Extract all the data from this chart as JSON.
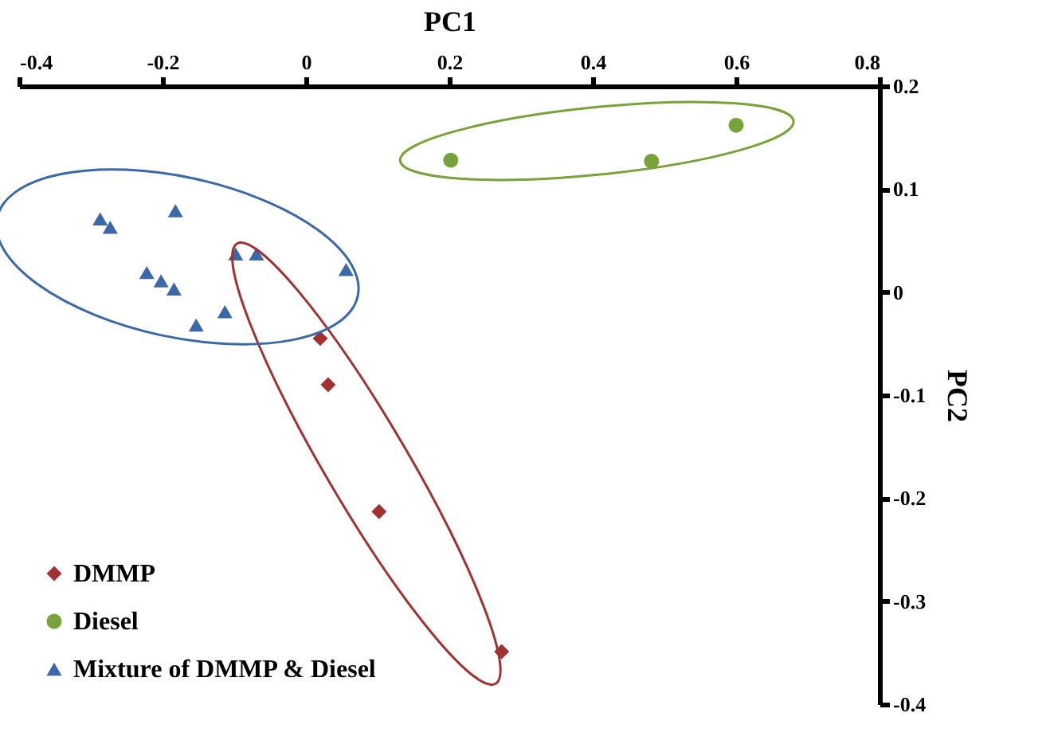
{
  "chart_data": {
    "type": "scatter",
    "xlabel": "PC1",
    "ylabel": "PC2",
    "xlim": [
      -0.4,
      0.8
    ],
    "xticks": [
      -0.4,
      -0.2,
      0,
      0.2,
      0.4,
      0.6,
      0.8
    ],
    "ylim": [
      -0.4,
      0.2
    ],
    "yticks": [
      -0.4,
      -0.3,
      -0.2,
      -0.1,
      0,
      0.1,
      0.2
    ],
    "grid": false,
    "legend": "bottom left",
    "series": [
      {
        "name": "DMMP",
        "color": "#a03232",
        "marker": "diamond",
        "x": [
          0.02,
          0.031,
          0.102,
          0.273
        ],
        "values": [
          -0.045,
          -0.09,
          -0.213,
          -0.349
        ]
      },
      {
        "name": "Diesel",
        "color": "#77a33a",
        "marker": "circle",
        "x": [
          0.202,
          0.482,
          0.6
        ],
        "values": [
          0.128,
          0.127,
          0.162
        ]
      },
      {
        "name": "Mixture of DMMP & Diesel",
        "color": "#3a68a8",
        "marker": "triangle",
        "x": [
          -0.287,
          -0.273,
          -0.182,
          -0.222,
          -0.202,
          -0.184,
          -0.153,
          -0.113,
          -0.098,
          -0.069,
          0.056
        ],
        "values": [
          0.071,
          0.063,
          0.079,
          0.019,
          0.011,
          0.003,
          -0.032,
          -0.019,
          0.037,
          0.037,
          0.022
        ]
      }
    ]
  }
}
